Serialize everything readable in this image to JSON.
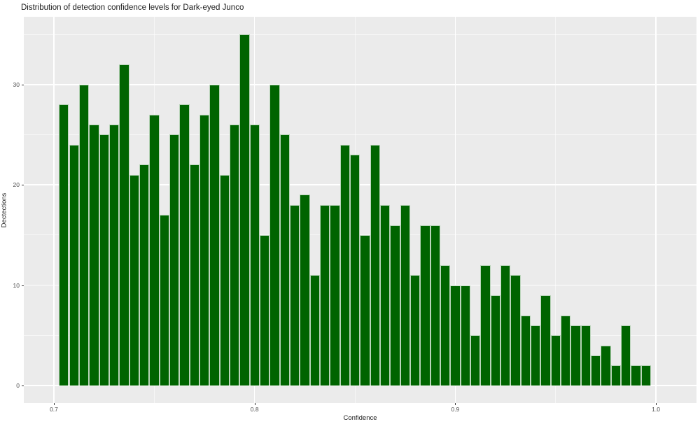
{
  "chart_data": {
    "type": "bar",
    "subtype": "histogram",
    "title": "Distribution of detection confidence levels for Dark-eyed Junco",
    "xlabel": "Confidence",
    "ylabel": "Dectections",
    "bar_fill_color": "#006400",
    "bar_edge_color": "#b9d4b9",
    "panel_background": "#EBEBEB",
    "grid_color": "#FFFFFF",
    "legend": "none",
    "grid": "on",
    "bin_width": 0.005,
    "first_bin_left_edge": 0.7025,
    "bin_centers_note": "bins centered at 0.705 through 0.995 in steps of 0.005",
    "values": [
      28,
      24,
      30,
      26,
      25,
      26,
      32,
      21,
      22,
      27,
      17,
      25,
      28,
      22,
      27,
      30,
      21,
      26,
      35,
      26,
      15,
      30,
      25,
      18,
      19,
      11,
      18,
      18,
      24,
      23,
      15,
      24,
      18,
      16,
      18,
      11,
      16,
      16,
      12,
      10,
      10,
      5,
      12,
      9,
      12,
      11,
      7,
      6,
      9,
      5,
      7,
      6,
      6,
      3,
      4,
      2,
      6,
      2,
      2
    ],
    "x_ticks": {
      "major": [
        0.7,
        0.8,
        0.9,
        1.0
      ],
      "major_labels": [
        "0.7",
        "0.8",
        "0.9",
        "1.0"
      ],
      "minor": [
        0.75,
        0.85,
        0.95
      ]
    },
    "y_ticks": {
      "major": [
        0,
        10,
        20,
        30
      ],
      "major_labels": [
        "0",
        "10",
        "20",
        "30"
      ],
      "minor": [
        5,
        15,
        25,
        35
      ]
    },
    "xlim": [
      0.685,
      1.0202
    ],
    "ylim": [
      -1.75,
      36.75
    ]
  }
}
